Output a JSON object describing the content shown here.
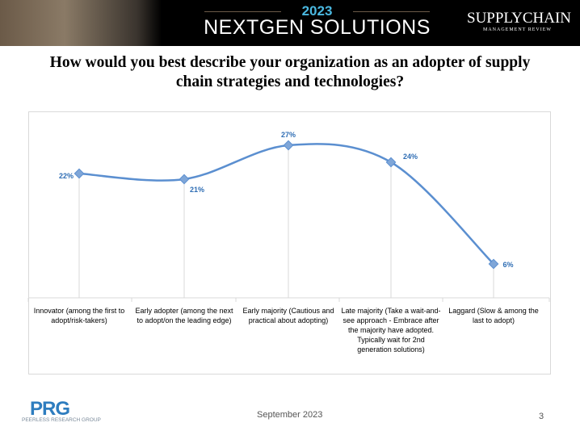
{
  "header": {
    "year": "2023",
    "title": "NEXTGEN SOLUTIONS",
    "brand": "SUPPLYCHAIN",
    "brand_sub": "MANAGEMENT REVIEW"
  },
  "chart_data": {
    "type": "line",
    "title": "How would you best describe your organization as an adopter of supply chain strategies and technologies?",
    "categories": [
      "Innovator (among the first to adopt/risk-takers)",
      "Early adopter (among the next to adopt/on the leading edge)",
      "Early majority (Cautious and practical about adopting)",
      "Late majority (Take a wait-and-see approach - Embrace after the majority have adopted. Typically wait for 2nd generation solutions)",
      "Laggard (Slow & among the last to adopt)"
    ],
    "values": [
      22,
      21,
      27,
      24,
      6
    ],
    "data_labels": [
      "22%",
      "21%",
      "27%",
      "24%",
      "6%"
    ],
    "ylim": [
      0,
      30
    ],
    "smooth": true,
    "color": "#5b8fd0",
    "label_color": "#2e6db4"
  },
  "footer": {
    "date": "September 2023",
    "page": "3",
    "logo": "PRG",
    "logo_sub": "PEERLESS RESEARCH GROUP"
  }
}
